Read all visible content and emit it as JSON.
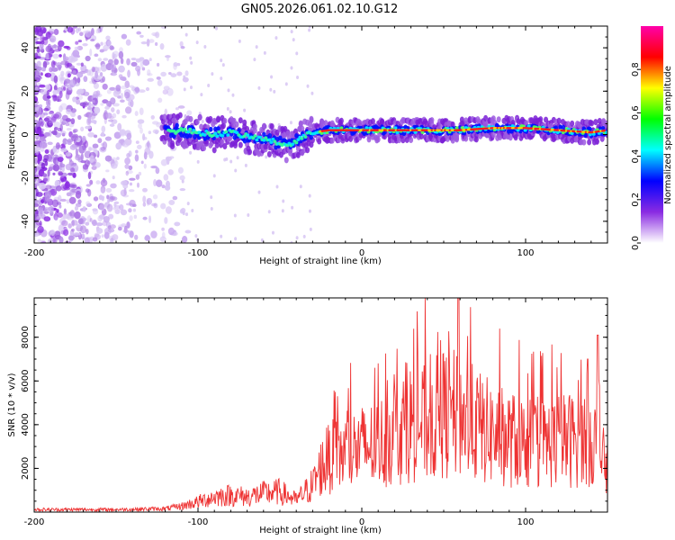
{
  "title": "GN05.2026.061.02.10.G12",
  "chart_data": [
    {
      "type": "heatmap",
      "id": "spectrogram",
      "xlabel": "Height of straight line (km)",
      "ylabel": "Frequency (Hz)",
      "xlim": [
        -200,
        150
      ],
      "ylim": [
        -50,
        50
      ],
      "xticks": [
        -200,
        -100,
        0,
        100
      ],
      "xtick_labels": [
        "-200",
        "-100",
        "0",
        "100"
      ],
      "yticks": [
        -40,
        -20,
        0,
        20,
        40
      ],
      "ytick_labels": [
        "-40",
        "-20",
        "0",
        "20",
        "40"
      ],
      "colorbar": {
        "label": "Normalized spectral amplitude",
        "range": [
          0,
          1
        ],
        "ticks": [
          0.0,
          0.2,
          0.4,
          0.6,
          0.8
        ],
        "tick_labels": [
          "0.0",
          "0.2",
          "0.4",
          "0.6",
          "0.8"
        ],
        "colors": [
          "#ffffff",
          "#8a2be2",
          "#0000ff",
          "#00ffff",
          "#00ff00",
          "#ffff00",
          "#ff0000",
          "#ff00aa"
        ]
      },
      "center_line": {
        "x": [
          -120,
          -110,
          -100,
          -90,
          -80,
          -70,
          -60,
          -50,
          -45,
          -40,
          -35,
          -30,
          -20,
          -10,
          0,
          20,
          40,
          60,
          80,
          100,
          120,
          140,
          150
        ],
        "freq": [
          1,
          2,
          1,
          0,
          1,
          -1,
          -2,
          -4,
          -5,
          -3,
          -1,
          1,
          2,
          2,
          2,
          2,
          2,
          2,
          3,
          3,
          2,
          1,
          2
        ]
      },
      "noise_region_xlim": [
        -200,
        -110
      ]
    },
    {
      "type": "line",
      "id": "snr",
      "xlabel": "Height of straight line (km)",
      "ylabel": "SNR (10 * v/v)",
      "xlim": [
        -200,
        150
      ],
      "ylim": [
        0,
        9800
      ],
      "xticks": [
        -200,
        -100,
        0,
        100
      ],
      "xtick_labels": [
        "-200",
        "-100",
        "0",
        "100"
      ],
      "yticks": [
        2000,
        4000,
        6000,
        8000
      ],
      "ytick_labels": [
        "2000",
        "4000",
        "6000",
        "8000"
      ],
      "series": [
        {
          "name": "SNR",
          "color": "#ee3333",
          "envelope_x": [
            -200,
            -150,
            -120,
            -110,
            -100,
            -90,
            -80,
            -70,
            -60,
            -50,
            -40,
            -30,
            -25,
            -20,
            -10,
            0,
            10,
            20,
            30,
            40,
            50,
            60,
            70,
            80,
            90,
            100,
            110,
            120,
            130,
            140,
            150
          ],
          "envelope_y": [
            150,
            150,
            200,
            350,
            600,
            900,
            1000,
            900,
            1100,
            1200,
            700,
            1600,
            2600,
            3200,
            3500,
            3800,
            4000,
            4700,
            5300,
            5200,
            5800,
            5700,
            5100,
            4600,
            4300,
            4100,
            4000,
            4200,
            4300,
            4500,
            2500
          ]
        }
      ]
    }
  ]
}
